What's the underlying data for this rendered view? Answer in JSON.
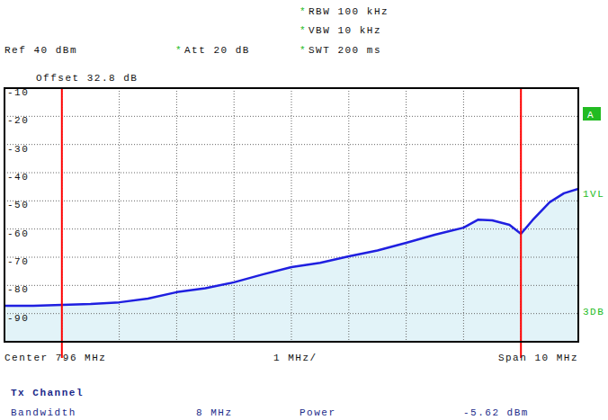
{
  "chart_data": {
    "type": "line",
    "header": {
      "ref": "Ref 40 dBm",
      "att": "Att 20 dB",
      "rbw": "RBW 100 kHz",
      "vbw": "VBW 10 kHz",
      "swt": "SWT 200 ms",
      "offset": "Offset 32.8 dB",
      "flag": "*"
    },
    "x": [
      791,
      791.5,
      792,
      792.5,
      793,
      793.5,
      794,
      794.5,
      795,
      795.5,
      796,
      796.5,
      797,
      797.5,
      798,
      798.5,
      799,
      799.25,
      799.5,
      799.8,
      800,
      800.2,
      800.5,
      800.75,
      801
    ],
    "series": [
      {
        "color": "#1f1fe0",
        "values": [
          -87.2,
          -87.2,
          -86.9,
          -86.6,
          -86.0,
          -84.7,
          -82.4,
          -81.0,
          -78.9,
          -76.1,
          -73.5,
          -72.0,
          -69.7,
          -67.6,
          -64.9,
          -62.0,
          -59.5,
          -56.7,
          -56.9,
          -58.5,
          -61.7,
          -56.9,
          -50.5,
          -47.3,
          -45.7
        ]
      }
    ],
    "xlim": [
      791,
      801
    ],
    "xticks": [
      791,
      792,
      793,
      794,
      795,
      796,
      797,
      798,
      799,
      800,
      801
    ],
    "x_labels": [
      "Center 796 MHz",
      "1 MHz/",
      "Span 10 MHz"
    ],
    "ylim": [
      -100,
      -10
    ],
    "yticks": [
      -90,
      -80,
      -70,
      -60,
      -50,
      -40,
      -30,
      -20,
      -10
    ],
    "grid": true,
    "tick_labels": "y",
    "channel_lines": {
      "x": [
        792,
        800
      ],
      "color": "#ff0000"
    },
    "side_labels": [
      "A",
      "1VL",
      "3DB"
    ],
    "table": {
      "title": "Tx Channel",
      "rows": [
        [
          "Bandwidth",
          "8 MHz",
          "Power",
          "-5.62 dBm"
        ]
      ]
    }
  }
}
